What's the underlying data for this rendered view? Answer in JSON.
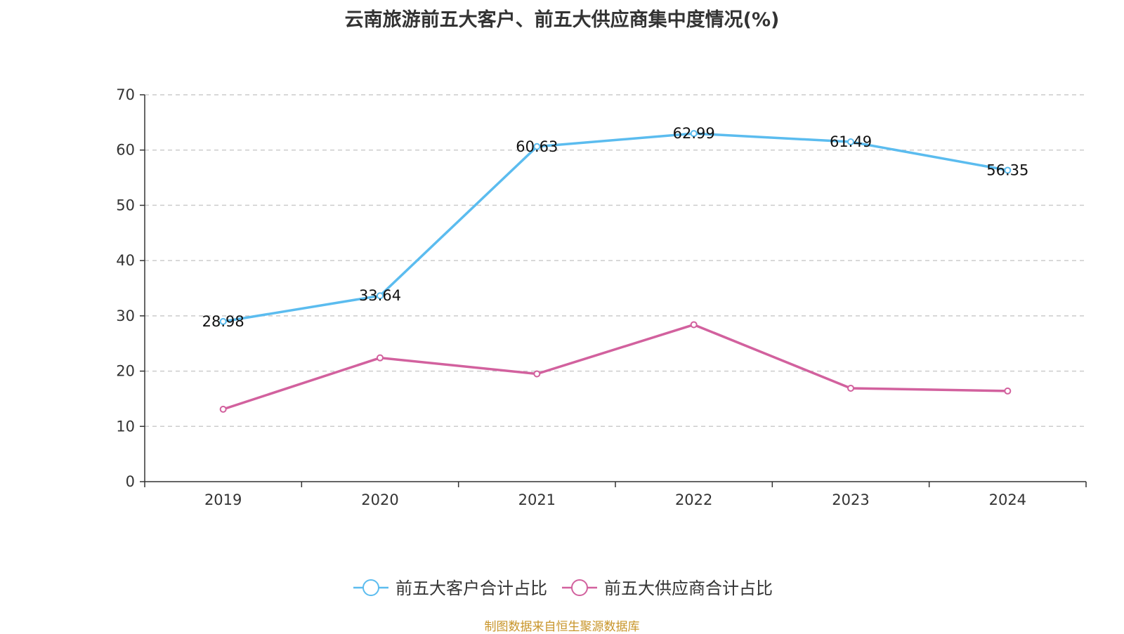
{
  "page_title": "云南旅游前五大客户、前五大供应商集中度情况(%)",
  "source_note": "制图数据来自恒生聚源数据库",
  "chart_data": {
    "type": "line",
    "title": "云南旅游前五大客户、前五大供应商集中度情况(%)",
    "categories": [
      "2019",
      "2020",
      "2021",
      "2022",
      "2023",
      "2024"
    ],
    "ylim": [
      0,
      70
    ],
    "yticks": [
      "0",
      "10",
      "20",
      "30",
      "40",
      "50",
      "60",
      "70"
    ],
    "grid": true,
    "legend_position": "bottom",
    "series": [
      {
        "name": "前五大客户合计占比",
        "color": "#5bbcef",
        "values": [
          28.98,
          33.64,
          60.63,
          62.99,
          61.49,
          56.35
        ],
        "labels": [
          "28.98",
          "33.64",
          "60.63",
          "62.99",
          "61.49",
          "56.35"
        ],
        "show_labels": true
      },
      {
        "name": "前五大供应商合计占比",
        "color": "#d2619e",
        "values": [
          13.1,
          22.4,
          19.5,
          28.4,
          16.9,
          16.4
        ],
        "show_labels": false
      }
    ]
  }
}
